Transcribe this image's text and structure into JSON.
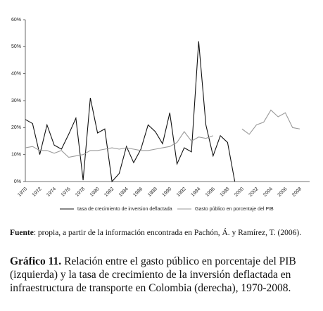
{
  "chart_data": {
    "type": "line",
    "categories": [
      "1970",
      null,
      "1972",
      null,
      "1974",
      null,
      "1976",
      null,
      "1978",
      null,
      "1980",
      null,
      "1982",
      null,
      "1984",
      null,
      "1986",
      null,
      "1988",
      null,
      "1990",
      null,
      "1992",
      null,
      "1994",
      null,
      "1996",
      null,
      "1998",
      null,
      "2000",
      null,
      "2002",
      null,
      "2004",
      null,
      "2006",
      null,
      "2008"
    ],
    "series": [
      {
        "name": "tasa de crecimiento de inversion deflactada",
        "color": "#111111",
        "values": [
          23,
          21.5,
          10,
          21,
          13.5,
          12,
          17.5,
          23.5,
          0.5,
          31,
          18,
          19.5,
          0,
          3,
          13,
          7,
          12,
          21,
          18.5,
          14,
          25.5,
          6.5,
          12.5,
          11,
          52,
          21,
          9.5,
          17,
          14.5,
          0,
          null,
          null,
          null,
          null,
          null,
          null,
          null,
          null,
          null
        ]
      },
      {
        "name": "Gasto público en porcentaje del PIB",
        "color": "#9a9a9a",
        "values": [
          12.5,
          13,
          11.5,
          11.5,
          10.5,
          11.5,
          9,
          9.5,
          10,
          11.5,
          11.5,
          12,
          12.5,
          12,
          12.5,
          12,
          11.5,
          11.5,
          12,
          12.5,
          13,
          14.5,
          18.5,
          15,
          16.5,
          16,
          17,
          null,
          null,
          null,
          19.5,
          17.5,
          21,
          22,
          26.5,
          24,
          25.5,
          20,
          19.5
        ]
      }
    ],
    "ylim": [
      0,
      60
    ],
    "yticks": [
      {
        "value": 0,
        "label": "0%"
      },
      {
        "value": 10,
        "label": "10%"
      },
      {
        "value": 20,
        "label": "20%"
      },
      {
        "value": 30,
        "label": "30%"
      },
      {
        "value": 40,
        "label": "40%"
      },
      {
        "value": 50,
        "label": "50%"
      },
      {
        "value": 60,
        "label": "60%"
      }
    ],
    "grid": false,
    "legend": "bottom"
  },
  "caption": {
    "source_label": "Fuente",
    "source_text": ": propia, a partir de la información encontrada en Pachón, Á. y Ramírez, T. (2006).",
    "figure_label": "Gráfico 11.",
    "figure_text": "Relación entre el gasto público en porcentaje del PIB (izquierda) y la tasa de crecimiento de la inversión deflactada en infraestructura de transporte en Colombia (derecha), 1970-2008."
  }
}
